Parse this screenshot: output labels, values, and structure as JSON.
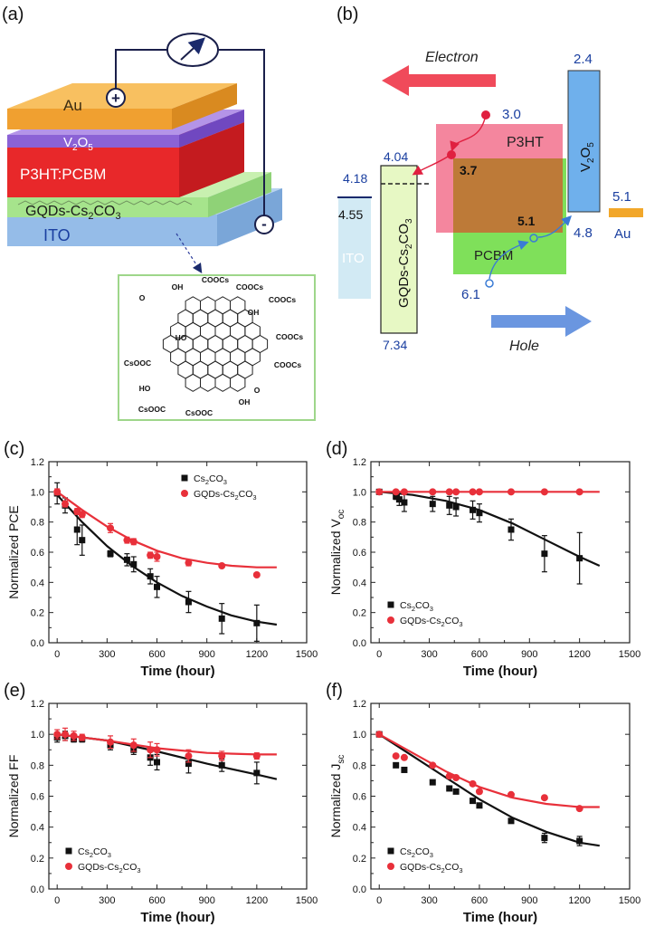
{
  "panels": {
    "a": {
      "tag": "(a)",
      "layers": {
        "au": "Au",
        "v2o5": "V",
        "v2o5_sub": "2",
        "v2o5_tail": "O",
        "v2o5_sub2": "5",
        "active": "P3HT:PCBM",
        "gqd": "GQDs-Cs",
        "gqd_sub": "2",
        "gqd_mid": "CO",
        "gqd_sub2": "3",
        "ito": "ITO"
      },
      "terminals": {
        "plus": "+",
        "minus": "-"
      },
      "molecule": {
        "labels": [
          "COOCs",
          "COOCs",
          "OH",
          "O",
          "OH",
          "COOCs",
          "HO",
          "COOCs",
          "CsOOC",
          "COOCs",
          "HO",
          "O",
          "CsOOC",
          "CsOOC",
          "OH"
        ]
      }
    },
    "b": {
      "tag": "(b)",
      "electron": "Electron",
      "hole": "Hole",
      "ito": "ITO",
      "gqd": "GQDs-Cs",
      "gqd_sub": "2",
      "gqd_mid": "CO",
      "gqd_sub2": "3",
      "p3ht": "P3HT",
      "pcbm": "PCBM",
      "v2o5": "V",
      "v2o5_sub": "2",
      "v2o5_tail": "O",
      "v2o5_sub2": "5",
      "au": "Au",
      "levels": {
        "ito_top": "4.55",
        "gqd_top": "4.04",
        "gqd_ito": "4.18",
        "gqd_bottom": "7.34",
        "p3ht_top": "3.0",
        "pcbm_top": "3.7",
        "p3ht_bottom": "5.1",
        "pcbm_bottom": "6.1",
        "v2o5_top": "2.4",
        "v2o5_bottom": "4.8",
        "au": "5.1"
      }
    }
  },
  "chart_data": [
    {
      "tag": "(c)",
      "type": "scatter",
      "xlabel": "Time (hour)",
      "ylabel": "Normalized PCE",
      "xlim": [
        -50,
        1500
      ],
      "ylim": [
        0,
        1.2
      ],
      "xticks": [
        "0",
        "300",
        "600",
        "900",
        "1200",
        "1500"
      ],
      "yticks": [
        "0.0",
        "0.2",
        "0.4",
        "0.6",
        "0.8",
        "1.0",
        "1.2"
      ],
      "legend": {
        "position": "top-right",
        "entries": [
          "Cs2CO3",
          "GQDs-Cs2CO3"
        ]
      },
      "series": [
        {
          "name": "Cs2CO3",
          "color": "#111111",
          "marker": "square",
          "x": [
            0,
            48,
            120,
            150,
            320,
            420,
            460,
            560,
            600,
            790,
            990,
            1200
          ],
          "y": [
            0.99,
            0.91,
            0.75,
            0.68,
            0.59,
            0.55,
            0.52,
            0.44,
            0.37,
            0.27,
            0.16,
            0.13
          ],
          "err": [
            0.07,
            0.05,
            0.1,
            0.1,
            0.02,
            0.04,
            0.05,
            0.05,
            0.07,
            0.07,
            0.1,
            0.12
          ],
          "fit": [
            [
              0,
              0.98
            ],
            [
              150,
              0.8
            ],
            [
              300,
              0.64
            ],
            [
              450,
              0.51
            ],
            [
              600,
              0.4
            ],
            [
              750,
              0.31
            ],
            [
              900,
              0.24
            ],
            [
              1050,
              0.18
            ],
            [
              1200,
              0.14
            ],
            [
              1320,
              0.12
            ]
          ]
        },
        {
          "name": "GQDs-Cs2CO3",
          "color": "#e8303a",
          "marker": "circle",
          "x": [
            0,
            48,
            120,
            150,
            320,
            420,
            460,
            560,
            600,
            790,
            990,
            1200
          ],
          "y": [
            1.0,
            0.92,
            0.87,
            0.85,
            0.76,
            0.68,
            0.67,
            0.58,
            0.57,
            0.53,
            0.51,
            0.45
          ],
          "err": [
            0.02,
            0.02,
            0.02,
            0.02,
            0.03,
            0.02,
            0.02,
            0.02,
            0.03,
            0.02,
            0.01,
            0.01
          ],
          "fit": [
            [
              0,
              1.0
            ],
            [
              150,
              0.88
            ],
            [
              300,
              0.77
            ],
            [
              450,
              0.68
            ],
            [
              600,
              0.61
            ],
            [
              750,
              0.56
            ],
            [
              900,
              0.53
            ],
            [
              1050,
              0.51
            ],
            [
              1200,
              0.5
            ],
            [
              1320,
              0.5
            ]
          ]
        }
      ]
    },
    {
      "tag": "(d)",
      "type": "scatter",
      "xlabel": "Time (hour)",
      "ylabel_main": "Normalized V",
      "ylabel_sub": "oc",
      "xlim": [
        -50,
        1500
      ],
      "ylim": [
        0,
        1.2
      ],
      "xticks": [
        "0",
        "300",
        "600",
        "900",
        "1200",
        "1500"
      ],
      "yticks": [
        "0.0",
        "0.2",
        "0.4",
        "0.6",
        "0.8",
        "1.0",
        "1.2"
      ],
      "legend": {
        "position": "lower-left",
        "entries": [
          "Cs2CO3",
          "GQDs-Cs2CO3"
        ]
      },
      "series": [
        {
          "name": "Cs2CO3",
          "color": "#111111",
          "marker": "square",
          "x": [
            0,
            100,
            120,
            150,
            320,
            420,
            460,
            560,
            600,
            790,
            990,
            1200
          ],
          "y": [
            1.0,
            0.97,
            0.95,
            0.93,
            0.92,
            0.91,
            0.9,
            0.88,
            0.86,
            0.75,
            0.59,
            0.56
          ],
          "err": [
            0.01,
            0.02,
            0.04,
            0.06,
            0.05,
            0.06,
            0.06,
            0.06,
            0.06,
            0.07,
            0.12,
            0.17
          ],
          "fit": [
            [
              0,
              1.0
            ],
            [
              200,
              0.98
            ],
            [
              400,
              0.94
            ],
            [
              600,
              0.88
            ],
            [
              800,
              0.79
            ],
            [
              1000,
              0.68
            ],
            [
              1200,
              0.57
            ],
            [
              1320,
              0.51
            ]
          ]
        },
        {
          "name": "GQDs-Cs2CO3",
          "color": "#e8303a",
          "marker": "circle",
          "x": [
            0,
            100,
            150,
            320,
            420,
            460,
            560,
            600,
            790,
            990,
            1200
          ],
          "y": [
            1.0,
            1.0,
            1.0,
            1.0,
            1.0,
            1.0,
            1.0,
            1.0,
            1.0,
            1.0,
            1.0
          ],
          "err": [
            0,
            0,
            0,
            0,
            0,
            0,
            0,
            0,
            0,
            0,
            0
          ],
          "fit": [
            [
              0,
              1.0
            ],
            [
              1320,
              1.0
            ]
          ]
        }
      ]
    },
    {
      "tag": "(e)",
      "type": "scatter",
      "xlabel": "Time (hour)",
      "ylabel": "Normalized FF",
      "xlim": [
        -50,
        1500
      ],
      "ylim": [
        0,
        1.2
      ],
      "xticks": [
        "0",
        "300",
        "600",
        "900",
        "1200",
        "1500"
      ],
      "yticks": [
        "0.0",
        "0.2",
        "0.4",
        "0.6",
        "0.8",
        "1.0",
        "1.2"
      ],
      "legend": {
        "position": "lower-left",
        "entries": [
          "Cs2CO3",
          "GQDs-Cs2CO3"
        ]
      },
      "series": [
        {
          "name": "Cs2CO3",
          "color": "#111111",
          "marker": "square",
          "x": [
            0,
            48,
            100,
            150,
            320,
            460,
            560,
            600,
            790,
            990,
            1200
          ],
          "y": [
            0.98,
            0.99,
            0.97,
            0.97,
            0.93,
            0.9,
            0.85,
            0.82,
            0.81,
            0.8,
            0.75
          ],
          "err": [
            0.03,
            0.03,
            0.02,
            0.02,
            0.03,
            0.03,
            0.05,
            0.05,
            0.06,
            0.04,
            0.07
          ],
          "fit": [
            [
              0,
              1.0
            ],
            [
              300,
              0.96
            ],
            [
              600,
              0.89
            ],
            [
              900,
              0.81
            ],
            [
              1200,
              0.74
            ],
            [
              1320,
              0.71
            ]
          ]
        },
        {
          "name": "GQDs-Cs2CO3",
          "color": "#e8303a",
          "marker": "circle",
          "x": [
            0,
            48,
            100,
            150,
            320,
            460,
            560,
            600,
            790,
            990,
            1200
          ],
          "y": [
            1.0,
            1.0,
            0.99,
            0.98,
            0.95,
            0.93,
            0.9,
            0.9,
            0.86,
            0.86,
            0.86
          ],
          "err": [
            0.03,
            0.04,
            0.03,
            0.02,
            0.04,
            0.04,
            0.05,
            0.04,
            0.04,
            0.03,
            0.02
          ],
          "fit": [
            [
              0,
              1.0
            ],
            [
              300,
              0.96
            ],
            [
              600,
              0.91
            ],
            [
              900,
              0.88
            ],
            [
              1200,
              0.87
            ],
            [
              1320,
              0.87
            ]
          ]
        }
      ]
    },
    {
      "tag": "(f)",
      "type": "scatter",
      "xlabel": "Time (hour)",
      "ylabel_main": "Normalized J",
      "ylabel_sub": "sc",
      "xlim": [
        -50,
        1500
      ],
      "ylim": [
        0,
        1.2
      ],
      "xticks": [
        "0",
        "300",
        "600",
        "900",
        "1200",
        "1500"
      ],
      "yticks": [
        "0.0",
        "0.2",
        "0.4",
        "0.6",
        "0.8",
        "1.0",
        "1.2"
      ],
      "legend": {
        "position": "lower-left",
        "entries": [
          "Cs2CO3",
          "GQDs-Cs2CO3"
        ]
      },
      "series": [
        {
          "name": "Cs2CO3",
          "color": "#111111",
          "marker": "square",
          "x": [
            0,
            100,
            150,
            320,
            420,
            460,
            560,
            600,
            790,
            990,
            1200
          ],
          "y": [
            1.0,
            0.8,
            0.77,
            0.69,
            0.65,
            0.63,
            0.57,
            0.54,
            0.44,
            0.33,
            0.31
          ],
          "err": [
            0.01,
            0.01,
            0.01,
            0.01,
            0.01,
            0.01,
            0.01,
            0.01,
            0.01,
            0.03,
            0.03
          ],
          "fit": [
            [
              0,
              1.0
            ],
            [
              200,
              0.86
            ],
            [
              400,
              0.72
            ],
            [
              600,
              0.58
            ],
            [
              800,
              0.46
            ],
            [
              1000,
              0.37
            ],
            [
              1200,
              0.3
            ],
            [
              1320,
              0.28
            ]
          ]
        },
        {
          "name": "GQDs-Cs2CO3",
          "color": "#e8303a",
          "marker": "circle",
          "x": [
            0,
            100,
            150,
            320,
            420,
            460,
            560,
            600,
            790,
            990,
            1200
          ],
          "y": [
            1.0,
            0.86,
            0.85,
            0.8,
            0.73,
            0.72,
            0.68,
            0.63,
            0.61,
            0.59,
            0.52
          ],
          "err": [
            0.01,
            0.01,
            0.01,
            0.01,
            0.01,
            0.01,
            0.01,
            0.01,
            0.01,
            0.01,
            0.01
          ],
          "fit": [
            [
              0,
              1.0
            ],
            [
              200,
              0.88
            ],
            [
              400,
              0.76
            ],
            [
              600,
              0.66
            ],
            [
              800,
              0.59
            ],
            [
              1000,
              0.55
            ],
            [
              1200,
              0.53
            ],
            [
              1320,
              0.53
            ]
          ]
        }
      ]
    }
  ]
}
